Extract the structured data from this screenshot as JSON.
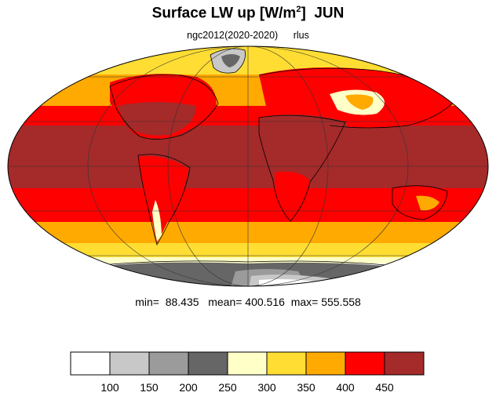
{
  "header": {
    "title_main": "Surface LW up [W/m",
    "title_sup": "2",
    "title_close": "]",
    "month": "JUN",
    "dataset": "ngc2012(2020-2020)",
    "variable": "rlus"
  },
  "stats": {
    "min_label": "min=",
    "min": "88.435",
    "mean_label": "mean=",
    "mean": "400.516",
    "max_label": "max=",
    "max": "555.558"
  },
  "colorbar": {
    "colors": [
      "#ffffff",
      "#c8c8c8",
      "#9b9b9b",
      "#666666",
      "#ffffc8",
      "#ffdd33",
      "#ffaa00",
      "#ff0000",
      "#a52a2a"
    ],
    "ticks": [
      "100",
      "150",
      "200",
      "250",
      "300",
      "350",
      "400",
      "450"
    ]
  },
  "legend_colors": {
    "white": "#ffffff",
    "light_gray": "#c8c8c8",
    "mid_gray": "#9b9b9b",
    "dark_gray": "#666666",
    "pale_yellow": "#ffffc8",
    "yellow": "#ffdd33",
    "orange": "#ffaa00",
    "red": "#ff0000",
    "dark_red": "#a52a2a"
  }
}
